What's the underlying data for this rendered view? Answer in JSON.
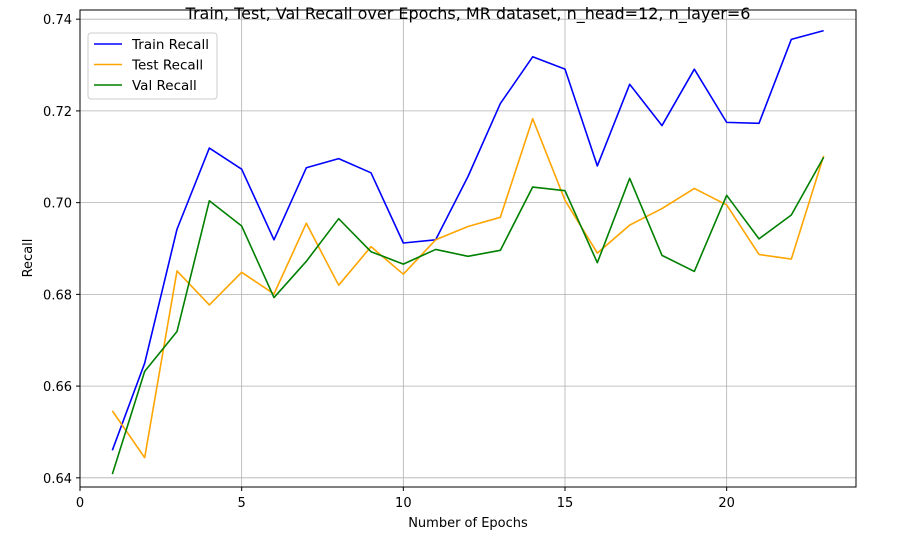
{
  "chart_data": {
    "type": "line",
    "title": "Train, Test, Val Recall over Epochs, MR dataset, n_head=12, n_layer=6",
    "xlabel": "Number of Epochs",
    "ylabel": "Recall",
    "xlim": [
      0,
      24
    ],
    "ylim": [
      0.638,
      0.742
    ],
    "xticks": [
      0,
      5,
      10,
      15,
      20
    ],
    "yticks": [
      0.64,
      0.66,
      0.68,
      0.7,
      0.72,
      0.74
    ],
    "xtick_labels": [
      "0",
      "5",
      "10",
      "15",
      "20"
    ],
    "ytick_labels": [
      "0.64",
      "0.66",
      "0.68",
      "0.70",
      "0.72",
      "0.74"
    ],
    "grid": true,
    "legend_position": "top-left",
    "x": [
      1,
      2,
      3,
      4,
      5,
      6,
      7,
      8,
      9,
      10,
      11,
      12,
      13,
      14,
      15,
      16,
      17,
      18,
      19,
      20,
      21,
      22,
      23
    ],
    "series": [
      {
        "name": "Train Recall",
        "color": "#0000ff",
        "values": [
          0.646,
          0.665,
          0.6942,
          0.7119,
          0.7073,
          0.6919,
          0.7076,
          0.7096,
          0.7065,
          0.6912,
          0.6919,
          0.7057,
          0.7216,
          0.7318,
          0.7291,
          0.708,
          0.7258,
          0.7168,
          0.7291,
          0.7175,
          0.7173,
          0.7356,
          0.7375
        ]
      },
      {
        "name": "Test Recall",
        "color": "#ffa500",
        "values": [
          0.6546,
          0.6444,
          0.6851,
          0.6777,
          0.6848,
          0.6801,
          0.6955,
          0.682,
          0.6904,
          0.6844,
          0.6919,
          0.6948,
          0.6968,
          0.7183,
          0.7005,
          0.689,
          0.6951,
          0.6987,
          0.7031,
          0.6995,
          0.6887,
          0.6877,
          0.7102
        ]
      },
      {
        "name": "Val Recall",
        "color": "#008000",
        "values": [
          0.6408,
          0.6632,
          0.6719,
          0.7004,
          0.6949,
          0.6793,
          0.6872,
          0.6965,
          0.6893,
          0.6866,
          0.6898,
          0.6883,
          0.6896,
          0.7034,
          0.7026,
          0.6869,
          0.7053,
          0.6885,
          0.685,
          0.7016,
          0.6921,
          0.6973,
          0.7099
        ]
      }
    ]
  }
}
